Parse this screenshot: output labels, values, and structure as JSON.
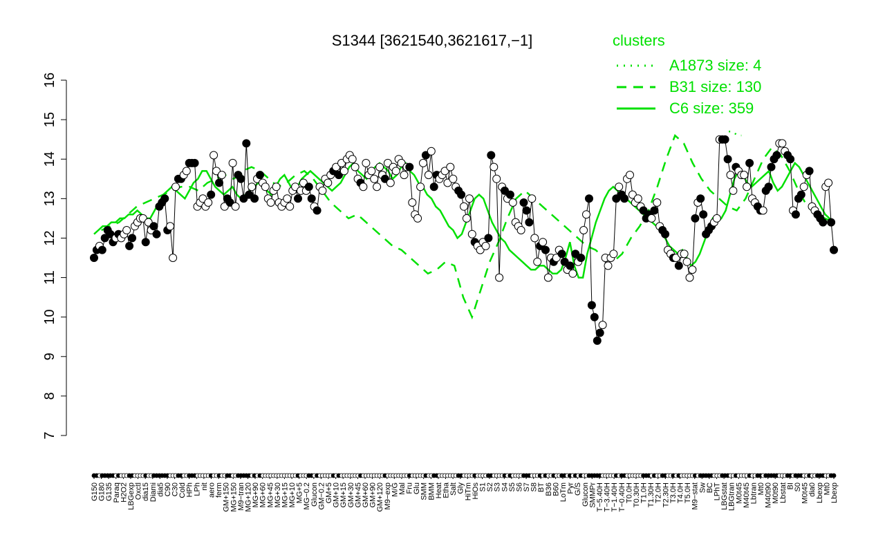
{
  "chart_data": {
    "type": "line",
    "title": "S1344 [3621540,3621617,−1]",
    "xlabel": "",
    "ylabel": "",
    "ylim": [
      7,
      16
    ],
    "yticks": [
      7,
      8,
      9,
      10,
      11,
      12,
      13,
      14,
      15,
      16
    ],
    "grid": false,
    "legend": {
      "title": "clusters",
      "placement": "top-right",
      "entries": [
        {
          "label": "A1873 size: 4",
          "style": "dotted"
        },
        {
          "label": "B31 size: 130",
          "style": "dashed"
        },
        {
          "label": "C6 size: 359",
          "style": "solid"
        }
      ]
    },
    "x_labels": [
      "G150",
      "G180",
      "G135",
      "Paraq",
      "H2O2",
      "LBGexp",
      "Oxctl",
      "dia15",
      "Diami",
      "dia5",
      "C90",
      "C30",
      "Cold",
      "HPh",
      "LPh",
      "nit",
      "aero",
      "ferm",
      "GM+150",
      "MG+150",
      "M9−tran",
      "MG+120",
      "MG+90",
      "MG+60",
      "MG+45",
      "MG+30",
      "MG+15",
      "MG+10",
      "MG+5",
      "MG−0.2",
      "Glucon",
      "GM−0.2",
      "GM+5",
      "GM+10",
      "GM+15",
      "GM+30",
      "GM+45",
      "GM+60",
      "GM+90",
      "GM+120",
      "M9−exp",
      "M/G",
      "Mal",
      "Fru",
      "Glu",
      "SMM",
      "BMM",
      "Heat",
      "Etha",
      "Salt",
      "Gly",
      "HiTm",
      "HiOs",
      "S1",
      "S2",
      "S3",
      "S4",
      "S5",
      "S6",
      "S7",
      "S8",
      "BT",
      "B36",
      "B60",
      "LoTm",
      "Pyr",
      "G/S",
      "Glucon",
      "SMMPr",
      "T−5.40H",
      "T−3.40H",
      "T−1.40H",
      "T−0.40H",
      "T0.0H",
      "T0.30H",
      "T1.0H",
      "T1.30H",
      "T2.0H",
      "T2.30H",
      "T3.0H",
      "T4.0H",
      "T5.0H",
      "M9−stat",
      "Sw",
      "BC",
      "LPhT",
      "LBGstat",
      "LBGtran",
      "M0t45",
      "M40t45",
      "Lbtran",
      "Mt0",
      "M40t90",
      "M0t90",
      "Lbstat",
      "BI",
      "S0",
      "M0t45",
      "dia0",
      "Lbexp",
      "Mt0",
      "Lbexp"
    ],
    "x_tick_labels_shown": [
      "G150",
      "G180",
      "G135",
      "Paraq",
      "H2O2",
      "LBGexp",
      "Oxctl",
      "dia15",
      "Diami",
      "dia5",
      "C90",
      "C30",
      "Cold",
      "HPh",
      "LPh",
      "nit",
      "aero",
      "ferm",
      "GM+150",
      "MG+150",
      "M9−tran",
      "MG+120",
      "MG+90",
      "MG+60",
      "MG+45",
      "MG+30",
      "MG+15",
      "MG+10",
      "MG+5",
      "MG−0.2",
      "Glucon",
      "GM−0.2",
      "GM+5",
      "GM+10",
      "GM+15",
      "GM+30",
      "GM+45",
      "GM+60",
      "GM+90",
      "GM+120",
      "M9−exp",
      "M/G",
      "Mal",
      "Fru",
      "Glu",
      "SMM",
      "BMM",
      "Heat",
      "Etha",
      "Salt",
      "Gly",
      "HiTm",
      "HiOs",
      "S1",
      "S2",
      "S3",
      "S4",
      "S5",
      "S6",
      "S7",
      "S8",
      "BT",
      "B36",
      "B60",
      "LoTm",
      "Pyr",
      "G/S",
      "Glucon",
      "SMMPr",
      "T−5.40H",
      "T−3.40H",
      "T−1.40H",
      "T−0.40H",
      "T0.0H",
      "T0.30H",
      "T1.0H",
      "T1.30H",
      "T2.0H",
      "T2.30H",
      "T3.0H",
      "T4.0H",
      "T5.0H",
      "M9−stat",
      "Sw",
      "BC",
      "LPhT",
      "LBGstat",
      "LBGtran",
      "M0t45",
      "M40t45",
      "Lbtran",
      "Mt0",
      "M40t90",
      "M0t90",
      "Lbstat",
      "BI",
      "S0",
      "M0t45",
      "dia0",
      "Lbexp",
      "Mt0",
      "Lbexp"
    ],
    "points_y": [
      11.5,
      11.7,
      11.8,
      11.7,
      12.0,
      12.2,
      12.1,
      11.9,
      12.0,
      12.1,
      12.0,
      12.1,
      12.2,
      11.8,
      12.0,
      12.3,
      12.4,
      12.5,
      12.5,
      11.9,
      12.4,
      12.2,
      12.3,
      12.1,
      12.8,
      12.9,
      13.0,
      12.2,
      12.3,
      11.5,
      13.3,
      13.5,
      13.5,
      13.6,
      13.7,
      13.9,
      13.9,
      13.9,
      12.8,
      12.9,
      13.0,
      12.8,
      12.9,
      13.1,
      14.1,
      13.7,
      13.4,
      13.6,
      12.8,
      13.0,
      12.9,
      13.9,
      12.8,
      13.6,
      13.5,
      13.0,
      14.4,
      13.1,
      13.3,
      13.0,
      13.5,
      13.6,
      13.4,
      13.3,
      13.0,
      12.9,
      13.2,
      13.3,
      12.9,
      12.8,
      12.9,
      13.0,
      12.8,
      13.2,
      13.3,
      13.0,
      13.2,
      13.4,
      13.2,
      13.3,
      13.0,
      12.8,
      12.7,
      13.3,
      13.2,
      13.5,
      13.4,
      13.6,
      13.7,
      13.8,
      13.6,
      13.9,
      13.7,
      14.0,
      14.1,
      14.0,
      13.8,
      13.5,
      13.4,
      13.3,
      13.9,
      13.6,
      13.7,
      13.5,
      13.3,
      13.8,
      13.6,
      13.5,
      13.9,
      13.4,
      13.8,
      13.7,
      14.0,
      13.9,
      13.6,
      13.8,
      13.8,
      12.9,
      12.6,
      12.5,
      13.3,
      13.9,
      14.1,
      13.6,
      14.2,
      13.3,
      13.6,
      13.5,
      13.6,
      13.7,
      13.4,
      13.8,
      13.5,
      13.3,
      13.2,
      13.1,
      12.8,
      12.5,
      13.0,
      12.1,
      11.9,
      11.8,
      11.7,
      11.9,
      11.8,
      12.0,
      14.1,
      13.8,
      13.5,
      11.0,
      13.3,
      13.2,
      13.0,
      13.1,
      12.9,
      12.4,
      12.3,
      12.2,
      12.9,
      12.7,
      12.4,
      13.0,
      12.0,
      11.4,
      11.8,
      11.9,
      11.7,
      11.0,
      11.5,
      11.4,
      11.5,
      11.7,
      11.6,
      11.4,
      11.2,
      11.3,
      11.1,
      11.6,
      11.4,
      11.5,
      12.2,
      12.6,
      13.0,
      10.3,
      10.0,
      9.4,
      9.6,
      9.8,
      11.5,
      11.3,
      11.5,
      11.6,
      13.0,
      13.3,
      13.1,
      13.0,
      13.5,
      13.6,
      13.1,
      12.9,
      13.0,
      12.8,
      12.7,
      12.5,
      12.6,
      12.5,
      12.7,
      12.9,
      12.3,
      12.2,
      12.1,
      11.7,
      11.6,
      11.5,
      11.5,
      11.3,
      11.6,
      11.6,
      11.4,
      11.0,
      11.2,
      12.5,
      12.9,
      13.0,
      12.6,
      12.1,
      12.2,
      12.3,
      12.4,
      12.5,
      14.5,
      14.5,
      14.5,
      14.0,
      13.6,
      13.2,
      13.8,
      13.7,
      13.6,
      13.6,
      13.3,
      13.9,
      13.0,
      12.9,
      12.8,
      12.7,
      12.7,
      13.2,
      13.3,
      13.8,
      14.0,
      14.1,
      14.4,
      14.4,
      14.2,
      14.1,
      14.0,
      12.7,
      12.6,
      13.0,
      13.1,
      13.3,
      13.6,
      13.7,
      12.8,
      12.7,
      12.6,
      12.5,
      12.4,
      13.3,
      13.4,
      12.4,
      11.7
    ],
    "points_filled": [
      true,
      true,
      false,
      true,
      true,
      true,
      true,
      true,
      false,
      true,
      false,
      false,
      false,
      true,
      true,
      false,
      false,
      false,
      false,
      true,
      false,
      false,
      true,
      true,
      true,
      true,
      true,
      true,
      false,
      false,
      false,
      true,
      true,
      false,
      false,
      true,
      true,
      true,
      false,
      false,
      false,
      false,
      false,
      true,
      false,
      false,
      true,
      false,
      false,
      true,
      true,
      false,
      false,
      true,
      true,
      true,
      true,
      true,
      false,
      true,
      false,
      true,
      false,
      false,
      false,
      false,
      false,
      false,
      false,
      false,
      false,
      false,
      false,
      false,
      false,
      true,
      false,
      false,
      false,
      true,
      true,
      false,
      true,
      false,
      false,
      false,
      false,
      false,
      true,
      false,
      true,
      false,
      false,
      false,
      false,
      false,
      false,
      false,
      true,
      false,
      false,
      false,
      false,
      false,
      false,
      false,
      false,
      true,
      false,
      false,
      false,
      false,
      false,
      false,
      false,
      false,
      true,
      false,
      false,
      false,
      false,
      false,
      true,
      false,
      false,
      true,
      true,
      false,
      false,
      false,
      false,
      false,
      false,
      false,
      true,
      true,
      false,
      false,
      false,
      false,
      true,
      false,
      false,
      false,
      false,
      true,
      true,
      false,
      false,
      false,
      false,
      true,
      false,
      true,
      false,
      false,
      false,
      false,
      true,
      true,
      true,
      false,
      false,
      false,
      true,
      false,
      true,
      false,
      false,
      true,
      false,
      false,
      true,
      true,
      false,
      true,
      false,
      true,
      false,
      true,
      false,
      false,
      true,
      true,
      true,
      true,
      true,
      false,
      false,
      false,
      false,
      false,
      true,
      false,
      true,
      true,
      false,
      false,
      false,
      false,
      false,
      false,
      true,
      true,
      true,
      false,
      true,
      false,
      false,
      true,
      true,
      false,
      false,
      true,
      false,
      true,
      false,
      false,
      false,
      false,
      false,
      true,
      false,
      true,
      true,
      true,
      true,
      true,
      false,
      false,
      false,
      true,
      true,
      true,
      false,
      false,
      true,
      false,
      false,
      false,
      false,
      true,
      false,
      false,
      true,
      true,
      false,
      true,
      true,
      true,
      true,
      true,
      false,
      false,
      false,
      true,
      true,
      false,
      true,
      true,
      true,
      false,
      false,
      true,
      false,
      false,
      true,
      true,
      true,
      false,
      false,
      true
    ],
    "series": [
      {
        "name": "C6 size: 359",
        "style": "solid",
        "values": [
          12.1,
          12.2,
          12.3,
          12.3,
          12.4,
          12.4,
          12.5,
          12.5,
          12.6,
          12.6,
          12.7,
          12.6,
          12.5,
          12.5,
          12.7,
          12.9,
          13.1,
          13.2,
          13.3,
          13.2,
          13.1,
          13.0,
          13.2,
          13.4,
          13.5,
          13.7,
          13.7,
          13.5,
          13.3,
          13.2,
          13.1,
          13.2,
          13.3,
          13.1,
          13.0,
          13.1,
          13.2,
          13.3,
          13.4,
          13.3,
          13.2,
          13.1,
          13.3,
          13.5,
          13.6,
          13.4,
          13.2,
          13.3,
          13.5,
          13.6,
          13.7,
          13.6,
          13.5,
          13.4,
          13.3,
          13.2,
          13.3,
          13.4,
          13.6,
          13.8,
          13.9,
          13.7,
          13.6,
          13.5,
          13.7,
          13.8,
          13.9,
          13.8,
          13.7,
          13.5,
          13.6,
          13.8,
          13.9,
          13.7,
          13.6,
          13.4,
          13.3,
          13.1,
          13.0,
          12.8,
          12.7,
          12.5,
          12.3,
          12.2,
          12.0,
          12.1,
          12.4,
          12.7,
          13.0,
          13.1,
          13.0,
          12.7,
          12.4,
          12.2,
          12.0,
          11.9,
          11.7,
          11.6,
          11.5,
          11.4,
          11.3,
          11.2,
          11.2,
          11.3,
          11.3,
          11.2,
          11.1,
          11.1,
          11.2,
          11.5,
          11.9,
          11.3,
          11.0,
          11.0,
          11.6,
          12.0,
          12.4,
          12.7,
          13.0,
          13.2,
          13.3,
          13.2,
          13.1,
          13.0,
          12.9,
          12.8,
          12.7,
          12.6,
          12.5,
          12.4,
          12.3,
          12.2,
          12.0,
          11.8,
          11.7,
          11.6,
          11.7,
          11.5,
          11.3,
          11.4,
          11.6,
          11.9,
          12.2,
          12.5,
          12.4,
          12.5,
          12.7,
          13.1,
          13.5,
          13.7,
          13.6,
          13.4,
          13.3,
          13.4,
          13.5,
          13.6,
          13.7,
          13.4,
          13.2,
          13.3,
          13.5,
          13.7,
          13.9,
          13.8,
          13.6,
          13.4,
          13.2,
          13.0,
          12.8,
          12.6,
          12.5,
          12.4
        ]
      },
      {
        "name": "B31 size: 130",
        "style": "dashed",
        "values": [
          12.2,
          12.3,
          12.4,
          12.6,
          12.8,
          12.9,
          13.0,
          13.1,
          13.2,
          13.3,
          13.3,
          13.2,
          13.4,
          13.5,
          13.6,
          13.5,
          13.7,
          13.8,
          13.7,
          13.5,
          13.3,
          13.4,
          13.6,
          13.7,
          13.5,
          13.2,
          12.9,
          12.7,
          12.5,
          12.6,
          12.4,
          12.2,
          12.0,
          11.8,
          11.7,
          11.5,
          11.3,
          11.1,
          11.2,
          11.4,
          11.3,
          10.5,
          10.0,
          10.7,
          11.4,
          11.9,
          12.5,
          13.0,
          13.2,
          13.0,
          12.8,
          12.6,
          12.4,
          12.2,
          12.0,
          11.8,
          11.7,
          11.5,
          11.4,
          11.6,
          12.0,
          12.3,
          12.7,
          13.3,
          14.0,
          14.6,
          14.4,
          13.9,
          13.5,
          13.2,
          13.0,
          12.8,
          12.7,
          13.0,
          13.5,
          14.0,
          14.3,
          14.1,
          13.7,
          13.2,
          12.8,
          12.6,
          12.5,
          12.4
        ]
      },
      {
        "name": "A1873 size: 4",
        "style": "dotted",
        "values": [
          14.7,
          14.7,
          14.6,
          14.6
        ]
      }
    ]
  }
}
